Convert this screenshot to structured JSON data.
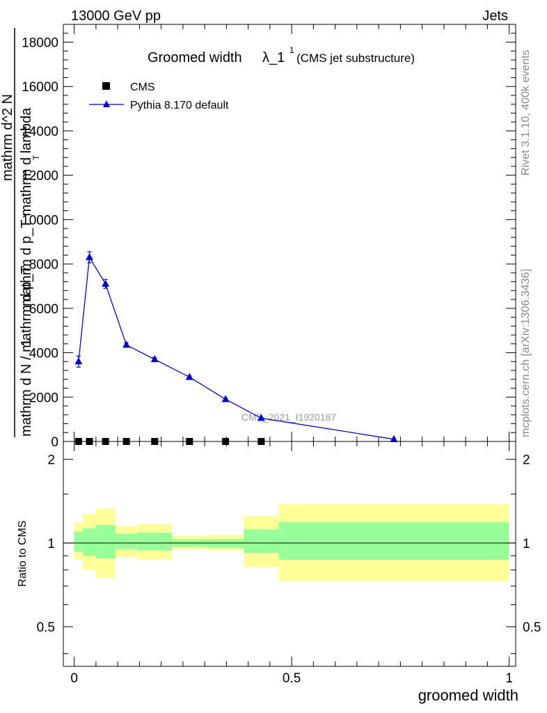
{
  "header": {
    "left": "13000 GeV pp",
    "right": "Jets"
  },
  "side": {
    "rivet": "Rivet 3.1.10,  400k events",
    "mcplots": "mcplots.cern.ch [arXiv:1306.3436]"
  },
  "chart_data": [
    {
      "type": "line",
      "panel": "main",
      "title_main": "Groomed width",
      "title_symbol": "λ_1",
      "title_sup": "1",
      "title_suffix": "(CMS jet substructure)",
      "watermark": "CMS_2021_I1920187",
      "ylabel_numerator": "1",
      "ylabel_denominator": "mathrm d N / mathrm d p_T",
      "ylabel_frac_top": "mathrm d^2 N",
      "ylabel_frac_bottom": "mathrm d p_T mathrm d lambda",
      "ylabel_sub": "T",
      "xlim": [
        -0.025,
        1.015
      ],
      "ylim": [
        0,
        18800
      ],
      "yticks": [
        0,
        2000,
        4000,
        6000,
        8000,
        10000,
        12000,
        14000,
        16000,
        18000
      ],
      "ytick_labels": [
        "0",
        "2000",
        "4000",
        "6000",
        "8000",
        "10000",
        "12000",
        "14000",
        "16000",
        "18000"
      ],
      "legend": [
        "CMS",
        "Pythia 8.170 default"
      ],
      "series": [
        {
          "name": "CMS",
          "marker": "square",
          "color": "#000000",
          "x": [
            0.01,
            0.035,
            0.072,
            0.12,
            0.185,
            0.265,
            0.348,
            0.43
          ],
          "values": [
            0,
            0,
            0,
            0,
            0,
            0,
            0,
            0
          ]
        },
        {
          "name": "Pythia 8.170 default",
          "marker": "triangle",
          "color": "#0000cc",
          "x": [
            0.01,
            0.035,
            0.072,
            0.12,
            0.185,
            0.265,
            0.348,
            0.43,
            0.735
          ],
          "values": [
            3600,
            8300,
            7100,
            4350,
            3700,
            2900,
            1900,
            1050,
            100
          ],
          "errors": [
            250,
            250,
            200,
            100,
            80,
            60,
            50,
            40,
            10
          ]
        }
      ]
    },
    {
      "type": "area",
      "panel": "ratio",
      "ylabel": "Ratio to CMS",
      "xlabel": "groomed width",
      "xlim": [
        -0.025,
        1.015
      ],
      "ylim": [
        0.36,
        2.32
      ],
      "yscale": "log",
      "yticks": [
        0.5,
        1,
        2
      ],
      "ytick_labels": [
        "0.5",
        "1",
        "2"
      ],
      "xticks": [
        0,
        0.5,
        1
      ],
      "xtick_labels": [
        "0",
        "0.5",
        "1"
      ],
      "reference": 1,
      "bins": [
        {
          "x0": 0.0,
          "x1": 0.02,
          "green": [
            0.93,
            1.1
          ],
          "yellow": [
            0.87,
            1.18
          ]
        },
        {
          "x0": 0.02,
          "x1": 0.05,
          "green": [
            0.9,
            1.13
          ],
          "yellow": [
            0.8,
            1.27
          ]
        },
        {
          "x0": 0.05,
          "x1": 0.095,
          "green": [
            0.88,
            1.16
          ],
          "yellow": [
            0.75,
            1.33
          ]
        },
        {
          "x0": 0.095,
          "x1": 0.145,
          "green": [
            0.95,
            1.08
          ],
          "yellow": [
            0.89,
            1.15
          ]
        },
        {
          "x0": 0.145,
          "x1": 0.225,
          "green": [
            0.94,
            1.09
          ],
          "yellow": [
            0.87,
            1.17
          ]
        },
        {
          "x0": 0.225,
          "x1": 0.305,
          "green": [
            0.97,
            1.03
          ],
          "yellow": [
            0.95,
            1.06
          ]
        },
        {
          "x0": 0.305,
          "x1": 0.39,
          "green": [
            0.96,
            1.03
          ],
          "yellow": [
            0.94,
            1.07
          ]
        },
        {
          "x0": 0.39,
          "x1": 0.47,
          "green": [
            0.92,
            1.12
          ],
          "yellow": [
            0.82,
            1.25
          ]
        },
        {
          "x0": 0.47,
          "x1": 1.0,
          "green": [
            0.87,
            1.19
          ],
          "yellow": [
            0.73,
            1.38
          ]
        }
      ],
      "colors": {
        "green": "#99ff99",
        "yellow": "#ffff99"
      }
    }
  ]
}
